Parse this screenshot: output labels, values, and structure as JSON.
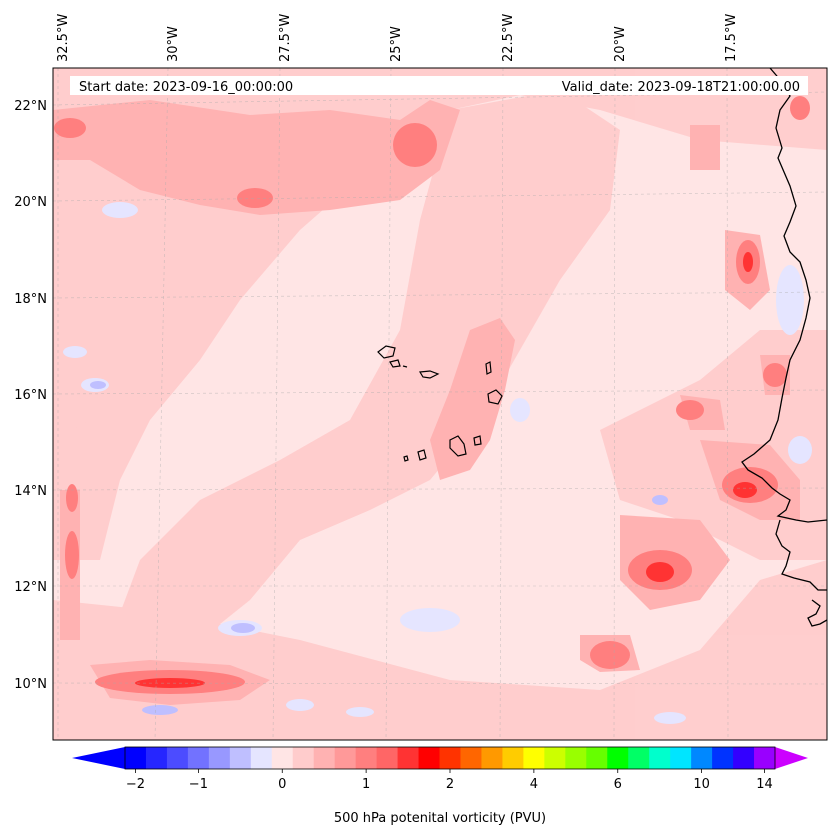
{
  "map": {
    "start_date_text": "Start date: 2023-09-16_00:00:00",
    "valid_date_text": "Valid_date: 2023-09-18T21:00:00.00",
    "lon_ticks": [
      "32.5°W",
      "30°W",
      "27.5°W",
      "25°W",
      "22.5°W",
      "20°W",
      "17.5°W"
    ],
    "lat_ticks": [
      "22°N",
      "20°N",
      "18°N",
      "16°N",
      "14°N",
      "12°N",
      "10°N"
    ],
    "field": "500 hPa potenital vorticity (PVU)"
  },
  "colorbar": {
    "label": "500 hPa potenital vorticity (PVU)",
    "tick_labels": [
      "−2",
      "−1",
      "0",
      "1",
      "2",
      "4",
      "6",
      "10",
      "14"
    ],
    "colors": [
      "#0000ff",
      "#2626ff",
      "#4c4cff",
      "#7272ff",
      "#9898ff",
      "#bfbfff",
      "#e5e5ff",
      "#ffe5e5",
      "#ffcccc",
      "#ffb2b2",
      "#ff9999",
      "#ff7f7f",
      "#ff6666",
      "#ff3333",
      "#ff0000",
      "#ff3300",
      "#ff6600",
      "#ff9900",
      "#ffcc00",
      "#ffff00",
      "#ccff00",
      "#99ff00",
      "#66ff00",
      "#00ff00",
      "#00ff66",
      "#00ffcc",
      "#00e5ff",
      "#0088ff",
      "#0033ff",
      "#3300ff",
      "#9900ff"
    ],
    "extend_min_color": "#0000ff",
    "extend_max_color": "#cc00ff"
  }
}
